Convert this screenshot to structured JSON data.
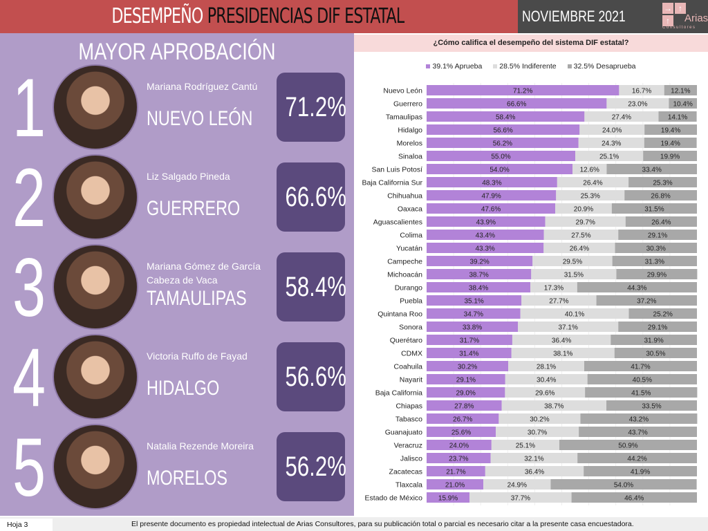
{
  "header": {
    "title_part1": "DESEMPEÑO",
    "title_part2": "PRESIDENCIAS DIF ESTATAL",
    "date": "NOVIEMBRE 2021",
    "logo_text": "Arias",
    "logo_sub": "Consultores"
  },
  "left": {
    "heading": "MAYOR APROBACIÓN",
    "entries": [
      {
        "rank": "1",
        "name": "Mariana Rodríguez Cantú",
        "state": "NUEVO LEÓN",
        "value": "71.2%"
      },
      {
        "rank": "2",
        "name": "Liz Salgado Pineda",
        "state": "GUERRERO",
        "value": "66.6%"
      },
      {
        "rank": "3",
        "name": "Mariana Gómez de García Cabeza de Vaca",
        "state": "TAMAULIPAS",
        "value": "58.4%"
      },
      {
        "rank": "4",
        "name": "Victoria Ruffo de Fayad",
        "state": "HIDALGO",
        "value": "56.6%"
      },
      {
        "rank": "5",
        "name": "Natalia Rezende Moreira",
        "state": "MORELOS",
        "value": "56.2%"
      }
    ]
  },
  "chart_data": {
    "type": "bar",
    "orientation": "horizontal",
    "stacked": true,
    "title": "¿Cómo califica el desempeño del sistema DIF estatal?",
    "legend_position": "top",
    "xlim": [
      0,
      100
    ],
    "categories": [
      "Nuevo León",
      "Guerrero",
      "Tamaulipas",
      "Hidalgo",
      "Morelos",
      "Sinaloa",
      "San Luis Potosí",
      "Baja California Sur",
      "Chihuahua",
      "Oaxaca",
      "Aguascalientes",
      "Colima",
      "Yucatán",
      "Campeche",
      "Michoacán",
      "Durango",
      "Puebla",
      "Quintana Roo",
      "Sonora",
      "Querétaro",
      "CDMX",
      "Coahuila",
      "Nayarit",
      "Baja California",
      "Chiapas",
      "Tabasco",
      "Guanajuato",
      "Veracruz",
      "Jalisco",
      "Zacatecas",
      "Tlaxcala",
      "Estado de México"
    ],
    "series": [
      {
        "name": "39.1% Aprueba",
        "color": "#b283d8",
        "values": [
          71.2,
          66.6,
          58.4,
          56.6,
          56.2,
          55.0,
          54.0,
          48.3,
          47.9,
          47.6,
          43.9,
          43.4,
          43.3,
          39.2,
          38.7,
          38.4,
          35.1,
          34.7,
          33.8,
          31.7,
          31.4,
          30.2,
          29.1,
          29.0,
          27.8,
          26.7,
          25.6,
          24.0,
          23.7,
          21.7,
          21.0,
          15.9
        ]
      },
      {
        "name": "28.5% Indiferente",
        "color": "#dddddd",
        "values": [
          16.7,
          23.0,
          27.4,
          24.0,
          24.3,
          25.1,
          12.6,
          26.4,
          25.3,
          20.9,
          29.7,
          27.5,
          26.4,
          29.5,
          31.5,
          17.3,
          27.7,
          40.1,
          37.1,
          36.4,
          38.1,
          28.1,
          30.4,
          29.6,
          38.7,
          30.2,
          30.7,
          25.1,
          32.1,
          36.4,
          24.9,
          37.7
        ]
      },
      {
        "name": "32.5% Desaprueba",
        "color": "#a8a8a8",
        "values": [
          12.1,
          10.4,
          14.1,
          19.4,
          19.4,
          19.9,
          33.4,
          25.3,
          26.8,
          31.5,
          26.4,
          29.1,
          30.3,
          31.3,
          29.9,
          44.3,
          37.2,
          25.2,
          29.1,
          31.9,
          30.5,
          41.7,
          40.5,
          41.5,
          33.5,
          43.2,
          43.7,
          50.9,
          44.2,
          41.9,
          54.0,
          46.4
        ]
      }
    ]
  },
  "footer": {
    "page": "Hoja 3",
    "note": "El presente documento es propiedad intelectual de Arias Consultores, para su publicación total o parcial es necesario citar a la presente casa encuestadora."
  }
}
